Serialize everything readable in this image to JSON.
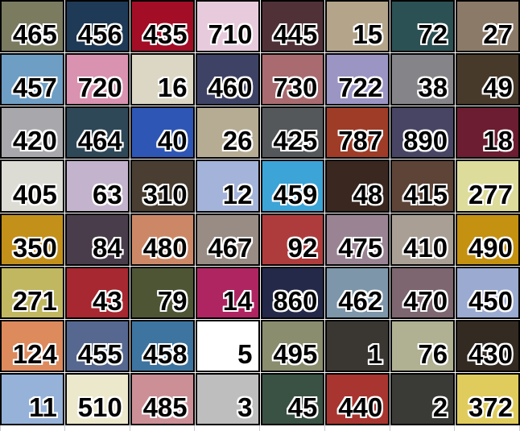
{
  "grid": {
    "columns": 8,
    "row_count": 8,
    "border_color": "#000000",
    "gridline_color": "#ffffff",
    "empty_row_line_color": "#c9ccd4",
    "number_text_color": "#000000",
    "number_halo_color": "#ffffff",
    "rows": [
      [
        {
          "value": "465",
          "color": "#7b7b60"
        },
        {
          "value": "456",
          "color": "#1e3a56"
        },
        {
          "value": "435",
          "color": "#a30d26"
        },
        {
          "value": "710",
          "color": "#e7cbdc"
        },
        {
          "value": "445",
          "color": "#513138"
        },
        {
          "value": "15",
          "color": "#b4a58a"
        },
        {
          "value": "72",
          "color": "#2b5154"
        },
        {
          "value": "27",
          "color": "#8b7a67"
        }
      ],
      [
        {
          "value": "457",
          "color": "#6f9ec4"
        },
        {
          "value": "720",
          "color": "#d992af"
        },
        {
          "value": "16",
          "color": "#dcd7c4"
        },
        {
          "value": "460",
          "color": "#3e4366"
        },
        {
          "value": "730",
          "color": "#a96b6f"
        },
        {
          "value": "722",
          "color": "#9b95c4"
        },
        {
          "value": "38",
          "color": "#858589"
        },
        {
          "value": "49",
          "color": "#483a2b"
        }
      ],
      [
        {
          "value": "420",
          "color": "#a8a8ac"
        },
        {
          "value": "464",
          "color": "#2f4858"
        },
        {
          "value": "40",
          "color": "#2e56b4"
        },
        {
          "value": "26",
          "color": "#b6ac93"
        },
        {
          "value": "425",
          "color": "#55585b"
        },
        {
          "value": "787",
          "color": "#9e3c28"
        },
        {
          "value": "890",
          "color": "#484564"
        },
        {
          "value": "18",
          "color": "#6c1d31"
        }
      ],
      [
        {
          "value": "405",
          "color": "#dcdcd4"
        },
        {
          "value": "63",
          "color": "#c3b3cc"
        },
        {
          "value": "310",
          "color": "#493e31"
        },
        {
          "value": "12",
          "color": "#a3b3d9"
        },
        {
          "value": "459",
          "color": "#3ca4d7"
        },
        {
          "value": "48",
          "color": "#392720"
        },
        {
          "value": "415",
          "color": "#5d4436"
        },
        {
          "value": "277",
          "color": "#dddc9a"
        }
      ],
      [
        {
          "value": "350",
          "color": "#c3901a"
        },
        {
          "value": "84",
          "color": "#493c4b"
        },
        {
          "value": "480",
          "color": "#cc8866"
        },
        {
          "value": "467",
          "color": "#998c84"
        },
        {
          "value": "92",
          "color": "#af3c3c"
        },
        {
          "value": "475",
          "color": "#9a8494"
        },
        {
          "value": "410",
          "color": "#a99f94"
        },
        {
          "value": "490",
          "color": "#c49110"
        }
      ],
      [
        {
          "value": "271",
          "color": "#c1b761"
        },
        {
          "value": "43",
          "color": "#a72830"
        },
        {
          "value": "79",
          "color": "#4d5534"
        },
        {
          "value": "14",
          "color": "#af2561"
        },
        {
          "value": "860",
          "color": "#242949"
        },
        {
          "value": "462",
          "color": "#7d96a9"
        },
        {
          "value": "470",
          "color": "#7d6670"
        },
        {
          "value": "450",
          "color": "#9aaad0"
        }
      ],
      [
        {
          "value": "124",
          "color": "#dd8a5d"
        },
        {
          "value": "455",
          "color": "#56688f"
        },
        {
          "value": "458",
          "color": "#3d74a0"
        },
        {
          "value": "5",
          "color": "#ffffff"
        },
        {
          "value": "495",
          "color": "#8a8d6e"
        },
        {
          "value": "1",
          "color": "#3a3632"
        },
        {
          "value": "76",
          "color": "#b0b092"
        },
        {
          "value": "430",
          "color": "#332a22"
        }
      ],
      [
        {
          "value": "11",
          "color": "#96b2d8"
        },
        {
          "value": "510",
          "color": "#ece8cc"
        },
        {
          "value": "485",
          "color": "#cc8f96"
        },
        {
          "value": "3",
          "color": "#bebebe"
        },
        {
          "value": "45",
          "color": "#3a5244"
        },
        {
          "value": "440",
          "color": "#a8352f"
        },
        {
          "value": "2",
          "color": "#3a3a36"
        },
        {
          "value": "372",
          "color": "#e0cc5d"
        }
      ]
    ]
  }
}
